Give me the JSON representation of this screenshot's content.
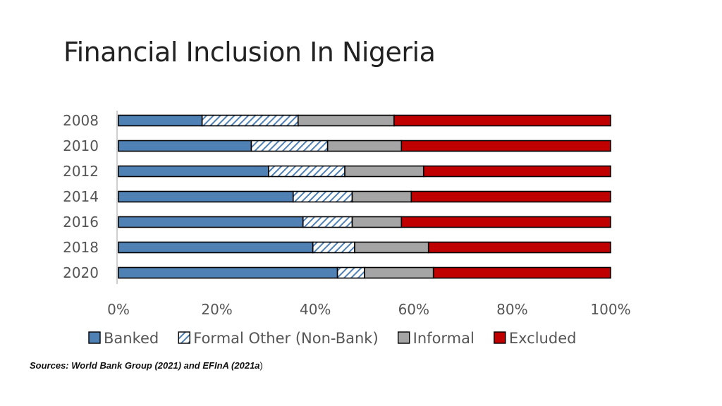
{
  "slide": {
    "title": "Financial Inclusion In Nigeria",
    "sources_text": "Sources: World Bank Group (2021) and EFInA (2021a",
    "sources_close": ")"
  },
  "chart_data": {
    "type": "bar",
    "orientation": "horizontal",
    "stacked": true,
    "categories": [
      "2008",
      "2010",
      "2012",
      "2014",
      "2016",
      "2018",
      "2020"
    ],
    "series": [
      {
        "name": "Banked",
        "values": [
          17,
          27,
          30.5,
          35.5,
          37.5,
          39.5,
          44.5
        ],
        "color": "#4f81b4",
        "pattern": "solid"
      },
      {
        "name": "Formal Other (Non-Bank)",
        "values": [
          19.5,
          15.5,
          15.5,
          12,
          10,
          8.5,
          5.5
        ],
        "color": "#4f81b4",
        "pattern": "hatched"
      },
      {
        "name": "Informal",
        "values": [
          19.5,
          15,
          16,
          12,
          10,
          15,
          14
        ],
        "color": "#a5a5a5",
        "pattern": "solid"
      },
      {
        "name": "Excluded",
        "values": [
          44,
          42.5,
          38,
          40.5,
          42.5,
          37,
          36
        ],
        "color": "#c00000",
        "pattern": "solid"
      }
    ],
    "xlim": [
      0,
      100
    ],
    "xticks": [
      "0%",
      "20%",
      "40%",
      "60%",
      "80%",
      "100%"
    ],
    "xlabel": "",
    "ylabel": "",
    "grid": false,
    "legend": "bottom"
  }
}
